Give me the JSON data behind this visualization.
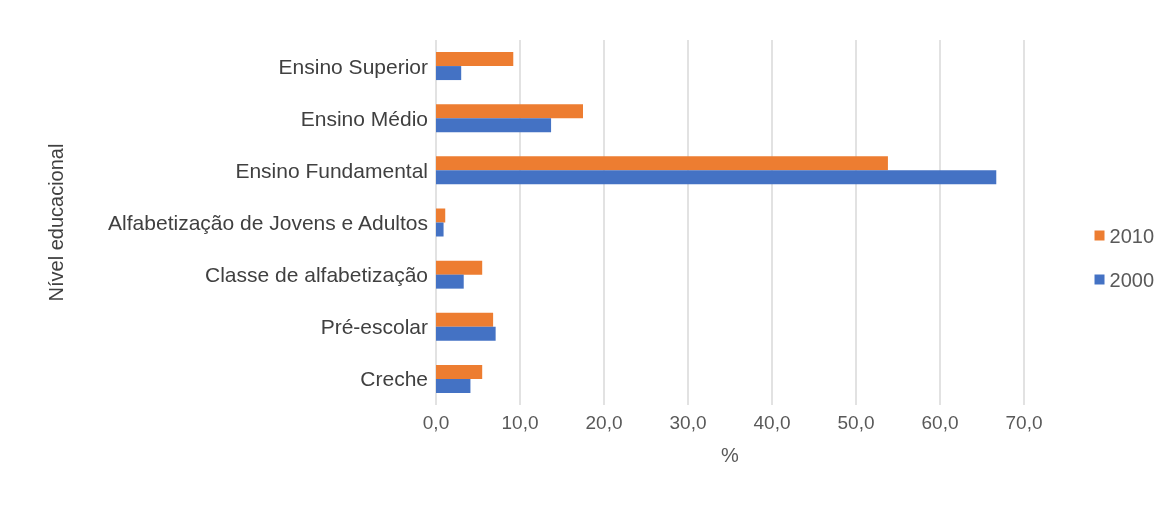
{
  "chart_data": {
    "type": "bar",
    "orientation": "horizontal",
    "xlabel": "%",
    "ylabel": "Nível educacional",
    "categories": [
      "Ensino Superior",
      "Ensino Médio",
      "Ensino Fundamental",
      "Alfabetização de Jovens e Adultos",
      "Classe de alfabetização",
      "Pré-escolar",
      "Creche"
    ],
    "series": [
      {
        "name": "2010",
        "color": "#ed7d31",
        "values": [
          9.2,
          17.5,
          53.8,
          1.1,
          5.5,
          6.8,
          5.5
        ]
      },
      {
        "name": "2000",
        "color": "#4472c4",
        "values": [
          3.0,
          13.7,
          66.7,
          0.9,
          3.3,
          7.1,
          4.1
        ]
      }
    ],
    "xlim": [
      0,
      70
    ],
    "xticks": [
      {
        "value": 0,
        "label": "0,0"
      },
      {
        "value": 10,
        "label": "10,0"
      },
      {
        "value": 20,
        "label": "20,0"
      },
      {
        "value": 30,
        "label": "30,0"
      },
      {
        "value": 40,
        "label": "40,0"
      },
      {
        "value": 50,
        "label": "50,0"
      },
      {
        "value": 60,
        "label": "60,0"
      },
      {
        "value": 70,
        "label": "70,0"
      }
    ],
    "grid": "x",
    "legend": "right"
  }
}
